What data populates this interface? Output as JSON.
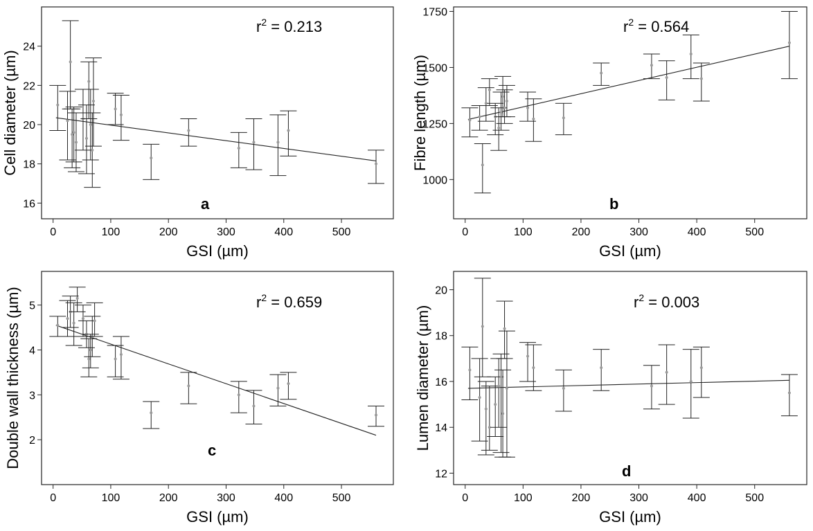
{
  "colors": {
    "frame": "#222222",
    "marker": "#999999",
    "errorbar": "#222222",
    "fit": "#222222"
  },
  "chart_data": [
    {
      "panel": "a",
      "type": "scatter",
      "title": "",
      "xlabel": "GSI (µm)",
      "ylabel": "Cell diameter (µm)",
      "annotation_r2": {
        "prefix": "r",
        "sup": "2",
        "suffix": " = 0.213"
      },
      "xlim": [
        -20,
        590
      ],
      "ylim": [
        15.2,
        26.0
      ],
      "xticks": [
        0,
        100,
        200,
        300,
        400,
        500
      ],
      "yticks": [
        16,
        18,
        20,
        22,
        24
      ],
      "fit": {
        "x0": 5,
        "y0": 20.35,
        "x1": 560,
        "y1": 18.15
      },
      "points": [
        {
          "x": 8,
          "y": 21.0,
          "lo": 19.7,
          "hi": 22.0
        },
        {
          "x": 25,
          "y": 20.2,
          "lo": 18.2,
          "hi": 21.7
        },
        {
          "x": 30,
          "y": 23.2,
          "lo": 20.8,
          "hi": 25.3
        },
        {
          "x": 33,
          "y": 19.5,
          "lo": 17.8,
          "hi": 20.8
        },
        {
          "x": 36,
          "y": 19.6,
          "lo": 18.1,
          "hi": 20.9
        },
        {
          "x": 40,
          "y": 19.1,
          "lo": 17.6,
          "hi": 20.6
        },
        {
          "x": 52,
          "y": 20.3,
          "lo": 18.7,
          "hi": 21.8
        },
        {
          "x": 58,
          "y": 19.3,
          "lo": 17.5,
          "hi": 21.0
        },
        {
          "x": 62,
          "y": 22.2,
          "lo": 20.3,
          "hi": 23.2
        },
        {
          "x": 65,
          "y": 20.0,
          "lo": 18.2,
          "hi": 21.8
        },
        {
          "x": 68,
          "y": 18.7,
          "lo": 16.8,
          "hi": 20.6
        },
        {
          "x": 70,
          "y": 21.2,
          "lo": 18.9,
          "hi": 23.4
        },
        {
          "x": 108,
          "y": 20.8,
          "lo": 20.0,
          "hi": 21.6
        },
        {
          "x": 118,
          "y": 20.5,
          "lo": 19.2,
          "hi": 21.5
        },
        {
          "x": 170,
          "y": 18.3,
          "lo": 17.2,
          "hi": 19.0
        },
        {
          "x": 235,
          "y": 19.7,
          "lo": 18.9,
          "hi": 20.3
        },
        {
          "x": 322,
          "y": 18.8,
          "lo": 17.8,
          "hi": 19.6
        },
        {
          "x": 348,
          "y": 19.1,
          "lo": 17.7,
          "hi": 20.3
        },
        {
          "x": 390,
          "y": 19.1,
          "lo": 17.4,
          "hi": 20.5
        },
        {
          "x": 408,
          "y": 19.7,
          "lo": 18.4,
          "hi": 20.7
        },
        {
          "x": 560,
          "y": 18.0,
          "lo": 17.0,
          "hi": 18.7
        }
      ]
    },
    {
      "panel": "b",
      "type": "scatter",
      "title": "",
      "xlabel": "GSI (µm)",
      "ylabel": "Fibre length (µm)",
      "annotation_r2": {
        "prefix": "r",
        "sup": "2",
        "suffix": " = 0.564"
      },
      "xlim": [
        -20,
        590
      ],
      "ylim": [
        825,
        1770
      ],
      "xticks": [
        0,
        100,
        200,
        300,
        400,
        500
      ],
      "yticks": [
        1000,
        1250,
        1500,
        1750
      ],
      "fit": {
        "x0": 5,
        "y0": 1268,
        "x1": 560,
        "y1": 1595
      },
      "points": [
        {
          "x": 8,
          "y": 1265,
          "lo": 1190,
          "hi": 1320
        },
        {
          "x": 25,
          "y": 1280,
          "lo": 1220,
          "hi": 1330
        },
        {
          "x": 30,
          "y": 1065,
          "lo": 940,
          "hi": 1160
        },
        {
          "x": 36,
          "y": 1340,
          "lo": 1260,
          "hi": 1410
        },
        {
          "x": 42,
          "y": 1400,
          "lo": 1330,
          "hi": 1450
        },
        {
          "x": 52,
          "y": 1280,
          "lo": 1200,
          "hi": 1340
        },
        {
          "x": 58,
          "y": 1230,
          "lo": 1130,
          "hi": 1320
        },
        {
          "x": 62,
          "y": 1300,
          "lo": 1220,
          "hi": 1390
        },
        {
          "x": 65,
          "y": 1370,
          "lo": 1280,
          "hi": 1460
        },
        {
          "x": 68,
          "y": 1320,
          "lo": 1250,
          "hi": 1400
        },
        {
          "x": 72,
          "y": 1350,
          "lo": 1280,
          "hi": 1420
        },
        {
          "x": 108,
          "y": 1320,
          "lo": 1260,
          "hi": 1390
        },
        {
          "x": 118,
          "y": 1270,
          "lo": 1170,
          "hi": 1360
        },
        {
          "x": 170,
          "y": 1275,
          "lo": 1200,
          "hi": 1340
        },
        {
          "x": 235,
          "y": 1475,
          "lo": 1420,
          "hi": 1520
        },
        {
          "x": 322,
          "y": 1510,
          "lo": 1450,
          "hi": 1560
        },
        {
          "x": 348,
          "y": 1455,
          "lo": 1355,
          "hi": 1530
        },
        {
          "x": 390,
          "y": 1560,
          "lo": 1450,
          "hi": 1645
        },
        {
          "x": 408,
          "y": 1450,
          "lo": 1350,
          "hi": 1520
        },
        {
          "x": 560,
          "y": 1610,
          "lo": 1450,
          "hi": 1750
        }
      ]
    },
    {
      "panel": "c",
      "type": "scatter",
      "title": "",
      "xlabel": "GSI (µm)",
      "ylabel": "Double wall thickness (µm)",
      "annotation_r2": {
        "prefix": "r",
        "sup": "2",
        "suffix": " = 0.659"
      },
      "xlim": [
        -20,
        590
      ],
      "ylim": [
        1.0,
        5.75
      ],
      "xticks": [
        0,
        100,
        200,
        300,
        400,
        500
      ],
      "yticks": [
        2,
        3,
        4,
        5
      ],
      "fit": {
        "x0": 5,
        "y0": 4.55,
        "x1": 560,
        "y1": 2.1
      },
      "points": [
        {
          "x": 8,
          "y": 4.55,
          "lo": 4.3,
          "hi": 4.75
        },
        {
          "x": 25,
          "y": 4.7,
          "lo": 4.3,
          "hi": 5.1
        },
        {
          "x": 30,
          "y": 4.85,
          "lo": 4.5,
          "hi": 5.2
        },
        {
          "x": 36,
          "y": 4.6,
          "lo": 4.1,
          "hi": 5.05
        },
        {
          "x": 42,
          "y": 5.15,
          "lo": 4.85,
          "hi": 5.4
        },
        {
          "x": 52,
          "y": 4.7,
          "lo": 4.3,
          "hi": 5.0
        },
        {
          "x": 58,
          "y": 4.35,
          "lo": 4.05,
          "hi": 4.65
        },
        {
          "x": 62,
          "y": 3.8,
          "lo": 3.4,
          "hi": 4.25
        },
        {
          "x": 65,
          "y": 4.0,
          "lo": 3.6,
          "hi": 4.35
        },
        {
          "x": 68,
          "y": 4.3,
          "lo": 3.85,
          "hi": 4.75
        },
        {
          "x": 72,
          "y": 4.65,
          "lo": 4.3,
          "hi": 5.05
        },
        {
          "x": 108,
          "y": 3.8,
          "lo": 3.4,
          "hi": 4.1
        },
        {
          "x": 118,
          "y": 3.9,
          "lo": 3.35,
          "hi": 4.3
        },
        {
          "x": 170,
          "y": 2.6,
          "lo": 2.25,
          "hi": 2.85
        },
        {
          "x": 235,
          "y": 3.2,
          "lo": 2.8,
          "hi": 3.5
        },
        {
          "x": 322,
          "y": 3.0,
          "lo": 2.6,
          "hi": 3.3
        },
        {
          "x": 348,
          "y": 2.75,
          "lo": 2.35,
          "hi": 3.1
        },
        {
          "x": 390,
          "y": 3.15,
          "lo": 2.75,
          "hi": 3.45
        },
        {
          "x": 408,
          "y": 3.25,
          "lo": 2.9,
          "hi": 3.5
        },
        {
          "x": 560,
          "y": 2.55,
          "lo": 2.3,
          "hi": 2.75
        }
      ]
    },
    {
      "panel": "d",
      "type": "scatter",
      "title": "",
      "xlabel": "GSI (µm)",
      "ylabel": "Lumen diameter (µm)",
      "annotation_r2": {
        "prefix": "r",
        "sup": "2",
        "suffix": " = 0.003"
      },
      "xlim": [
        -20,
        590
      ],
      "ylim": [
        11.5,
        20.8
      ],
      "xticks": [
        0,
        100,
        200,
        300,
        400,
        500
      ],
      "yticks": [
        12,
        14,
        16,
        18,
        20
      ],
      "fit": {
        "x0": 5,
        "y0": 15.7,
        "x1": 560,
        "y1": 16.05
      },
      "points": [
        {
          "x": 8,
          "y": 16.5,
          "lo": 15.2,
          "hi": 17.5
        },
        {
          "x": 25,
          "y": 15.3,
          "lo": 13.4,
          "hi": 17.0
        },
        {
          "x": 30,
          "y": 18.4,
          "lo": 16.2,
          "hi": 20.5
        },
        {
          "x": 36,
          "y": 14.8,
          "lo": 12.8,
          "hi": 16.0
        },
        {
          "x": 42,
          "y": 14.0,
          "lo": 13.0,
          "hi": 15.8
        },
        {
          "x": 52,
          "y": 15.0,
          "lo": 13.6,
          "hi": 16.2
        },
        {
          "x": 58,
          "y": 15.8,
          "lo": 14.0,
          "hi": 17.0
        },
        {
          "x": 62,
          "y": 16.2,
          "lo": 12.9,
          "hi": 17.2
        },
        {
          "x": 65,
          "y": 14.6,
          "lo": 12.7,
          "hi": 16.5
        },
        {
          "x": 68,
          "y": 18.3,
          "lo": 17.0,
          "hi": 19.5
        },
        {
          "x": 72,
          "y": 15.7,
          "lo": 12.7,
          "hi": 18.2
        },
        {
          "x": 108,
          "y": 17.1,
          "lo": 16.0,
          "hi": 17.7
        },
        {
          "x": 118,
          "y": 16.6,
          "lo": 15.6,
          "hi": 17.6
        },
        {
          "x": 170,
          "y": 15.7,
          "lo": 14.7,
          "hi": 16.5
        },
        {
          "x": 235,
          "y": 16.6,
          "lo": 15.6,
          "hi": 17.4
        },
        {
          "x": 322,
          "y": 15.8,
          "lo": 14.8,
          "hi": 16.7
        },
        {
          "x": 348,
          "y": 16.4,
          "lo": 15.0,
          "hi": 17.6
        },
        {
          "x": 390,
          "y": 16.0,
          "lo": 14.4,
          "hi": 17.4
        },
        {
          "x": 408,
          "y": 16.6,
          "lo": 15.3,
          "hi": 17.5
        },
        {
          "x": 560,
          "y": 15.5,
          "lo": 14.5,
          "hi": 16.3
        }
      ]
    }
  ]
}
